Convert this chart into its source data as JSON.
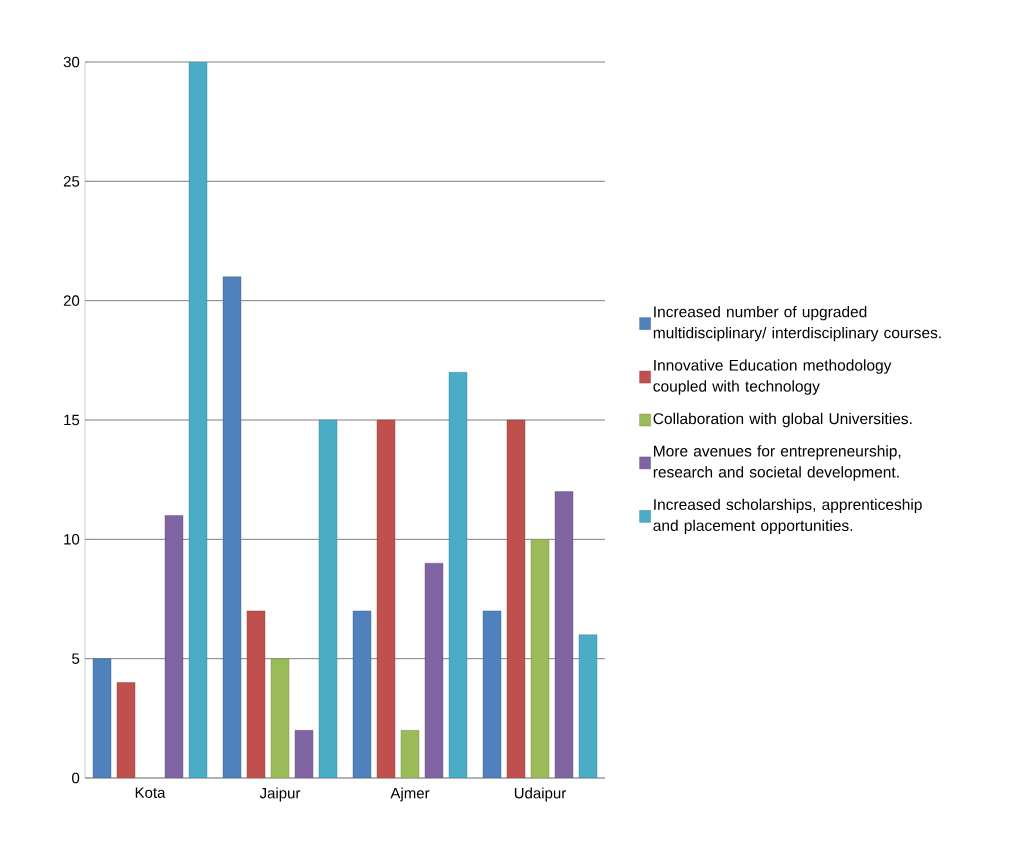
{
  "chart_data": {
    "type": "bar",
    "categories": [
      "Kota",
      "Jaipur",
      "Ajmer",
      "Udaipur"
    ],
    "series": [
      {
        "name": "Increased number of upgraded multidisciplinary/ interdisciplinary courses.",
        "color": "#4f81bd",
        "values": [
          5,
          21,
          7,
          7
        ]
      },
      {
        "name": "Innovative Education methodology coupled with technology",
        "color": "#c0504d",
        "values": [
          4,
          7,
          15,
          15
        ]
      },
      {
        "name": "Collaboration with global Universities.",
        "color": "#9bbb59",
        "values": [
          null,
          5,
          2,
          10
        ]
      },
      {
        "name": "More avenues for entrepreneurship, research and societal development.",
        "color": "#8064a2",
        "values": [
          11,
          2,
          9,
          12
        ]
      },
      {
        "name": "Increased scholarships, apprenticeship and placement opportunities.",
        "color": "#4bacc6",
        "values": [
          30,
          15,
          17,
          6
        ]
      }
    ],
    "ylim": [
      0,
      30
    ],
    "yticks": [
      0,
      5,
      10,
      15,
      20,
      25,
      30
    ],
    "grid": "y",
    "legend": "right"
  }
}
